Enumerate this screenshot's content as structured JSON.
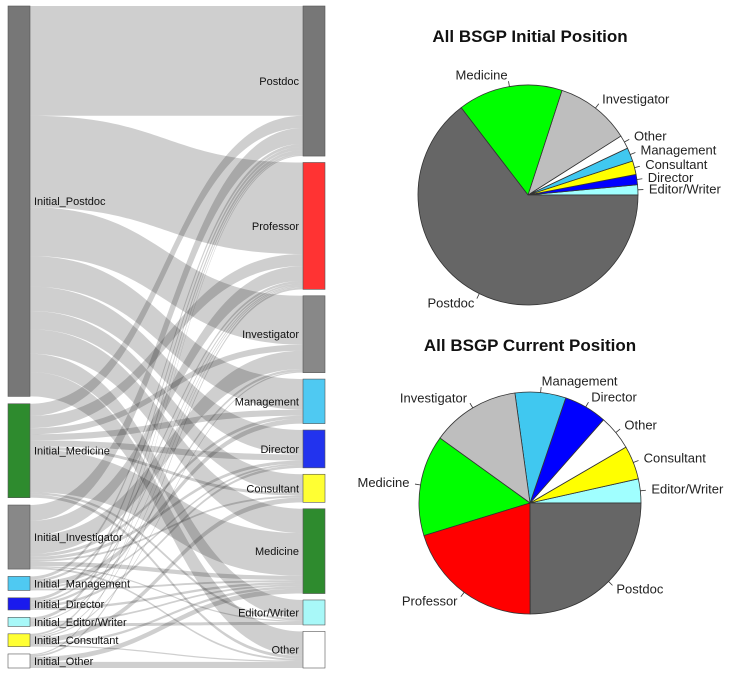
{
  "chart_data": [
    {
      "type": "sankey",
      "source_nodes": [
        {
          "name": "Initial_Postdoc",
          "color": "#777777"
        },
        {
          "name": "Initial_Medicine",
          "color": "#2e8b2e"
        },
        {
          "name": "Initial_Investigator",
          "color": "#888888"
        },
        {
          "name": "Initial_Management",
          "color": "#4fc9f2"
        },
        {
          "name": "Initial_Director",
          "color": "#1a1aee"
        },
        {
          "name": "Initial_Editor/Writer",
          "color": "#a8f8f8"
        },
        {
          "name": "Initial_Consultant",
          "color": "#ffff33"
        },
        {
          "name": "Initial_Other",
          "color": "#ffffff"
        }
      ],
      "target_nodes": [
        {
          "name": "Postdoc",
          "color": "#777777"
        },
        {
          "name": "Professor",
          "color": "#ff3333"
        },
        {
          "name": "Investigator",
          "color": "#888888"
        },
        {
          "name": "Management",
          "color": "#4fc9f2"
        },
        {
          "name": "Director",
          "color": "#2233ee"
        },
        {
          "name": "Consultant",
          "color": "#ffff33"
        },
        {
          "name": "Medicine",
          "color": "#2e8b2e"
        },
        {
          "name": "Editor/Writer",
          "color": "#a8f8f8"
        },
        {
          "name": "Other",
          "color": "#ffffff"
        }
      ],
      "flows_percent": [
        [
          18,
          15,
          8,
          5,
          4,
          3,
          4,
          3,
          4
        ],
        [
          2,
          2,
          1,
          1,
          1,
          0.5,
          7,
          0.4,
          0.5
        ],
        [
          2.6,
          2.4,
          3,
          0.5,
          0.5,
          0.3,
          0.7,
          0.2,
          0.3
        ],
        [
          0.5,
          0.4,
          0,
          0.8,
          0.3,
          0,
          0.3,
          0,
          0
        ],
        [
          0.5,
          0.3,
          0.4,
          0,
          0.4,
          0,
          0.4,
          0,
          0
        ],
        [
          0.5,
          0.2,
          0,
          0,
          0,
          0,
          0.3,
          0.5,
          0
        ],
        [
          0.3,
          0.2,
          0.2,
          0,
          0,
          0.8,
          0.4,
          0,
          0.2
        ],
        [
          0.2,
          0.3,
          0,
          0,
          0,
          0,
          0.8,
          0,
          1
        ]
      ],
      "link_color": "#000000"
    },
    {
      "type": "pie",
      "title": "All BSGP Initial Position",
      "slices": [
        {
          "label": "Editor/Writer",
          "value": 1.5,
          "color": "#a0ffff"
        },
        {
          "label": "Director",
          "value": 1.5,
          "color": "#0000ff"
        },
        {
          "label": "Consultant",
          "value": 2,
          "color": "#ffff00"
        },
        {
          "label": "Management",
          "value": 2,
          "color": "#40c8f0"
        },
        {
          "label": "Other",
          "value": 2,
          "color": "#ffffff"
        },
        {
          "label": "Investigator",
          "value": 11,
          "color": "#bebebe"
        },
        {
          "label": "Medicine",
          "value": 15.4,
          "color": "#00ff00"
        },
        {
          "label": "Postdoc",
          "value": 64.6,
          "color": "#666666"
        }
      ]
    },
    {
      "type": "pie",
      "title": "All BSGP Current Position",
      "slices": [
        {
          "label": "Editor/Writer",
          "value": 3.5,
          "color": "#a0ffff"
        },
        {
          "label": "Consultant",
          "value": 4.9,
          "color": "#ffff00"
        },
        {
          "label": "Other",
          "value": 5.1,
          "color": "#ffffff"
        },
        {
          "label": "Director",
          "value": 6.3,
          "color": "#0000ff"
        },
        {
          "label": "Management",
          "value": 7.4,
          "color": "#40c8f0"
        },
        {
          "label": "Investigator",
          "value": 12.9,
          "color": "#bebebe"
        },
        {
          "label": "Medicine",
          "value": 14.7,
          "color": "#00ff00"
        },
        {
          "label": "Professor",
          "value": 20.3,
          "color": "#ff0000"
        },
        {
          "label": "Postdoc",
          "value": 25,
          "color": "#666666"
        }
      ]
    }
  ]
}
